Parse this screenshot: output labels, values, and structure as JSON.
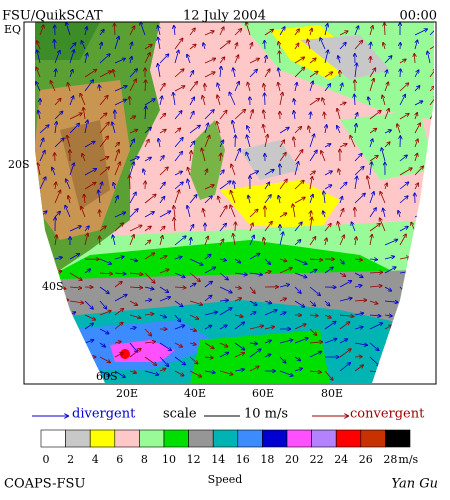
{
  "header": {
    "source": "FSU/QuikSCAT",
    "date": "12 July 2004",
    "time": "00:00"
  },
  "map": {
    "lat_labels": [
      "EQ",
      "20S",
      "40S",
      "60S"
    ],
    "lon_labels": [
      "20E",
      "40E",
      "60E",
      "80E"
    ]
  },
  "legend": {
    "divergent": "divergent",
    "scale": "scale",
    "scale_value": "10 m/s",
    "convergent": "convergent"
  },
  "colorbar": {
    "colors": [
      "#ffffff",
      "#c8c8c8",
      "#ffff00",
      "#ffc8c8",
      "#98fb98",
      "#00e000",
      "#969696",
      "#00b4b4",
      "#3c8cff",
      "#0000d0",
      "#ff50ff",
      "#b482ff",
      "#ff0000",
      "#c83200",
      "#000000"
    ],
    "labels": [
      "0",
      "2",
      "4",
      "6",
      "8",
      "10",
      "12",
      "14",
      "16",
      "18",
      "20",
      "22",
      "24",
      "26",
      "28"
    ],
    "unit": "m/s"
  },
  "footer": {
    "left": "COAPS-FSU",
    "center": "Speed",
    "right": "Yan Gu"
  }
}
